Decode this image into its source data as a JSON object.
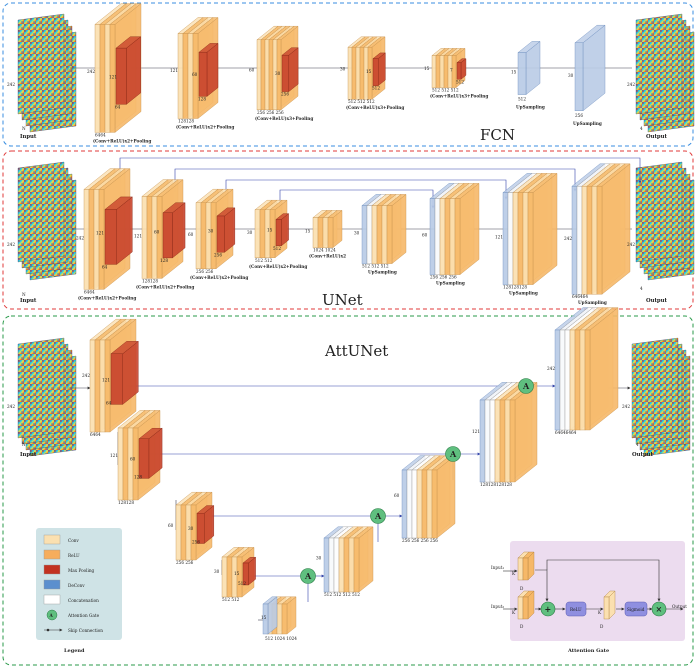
{
  "panels": {
    "fcn": {
      "title": "FCN",
      "color": "#2a2ae0"
    },
    "unet": {
      "title": "UNet",
      "color": "#e02a2a"
    },
    "attunet": {
      "title": "AttUNet",
      "color": "#1a9a3a"
    }
  },
  "io": {
    "input_label": "Input",
    "output_label": "Output",
    "size": "242",
    "batch": "N",
    "channels_out": "4"
  },
  "fcn": {
    "stages": [
      {
        "caption": "(Conv+ReLU)x2+Pooling",
        "size": "242",
        "channels": "6464",
        "inner_size": "121",
        "inner_ch": "64"
      },
      {
        "caption": "(Conv+ReLU)x2+Pooling",
        "size": "121",
        "channels": "128128",
        "inner_size": "60",
        "inner_ch": "128"
      },
      {
        "caption": "(Conv+ReLU)x3+Pooling",
        "size": "60",
        "channels": "256 256 256",
        "inner_size": "30",
        "inner_ch": "256"
      },
      {
        "caption": "(Conv+ReLU)x3+Pooling",
        "size": "30",
        "channels": "512 512 512",
        "inner_size": "15",
        "inner_ch": "512"
      },
      {
        "caption": "(Conv+ReLU)x3+Pooling",
        "size": "15",
        "channels": "512 512 512",
        "inner_size": "7",
        "inner_ch": "512"
      }
    ],
    "upsampling": [
      {
        "caption": "UpSampling",
        "size": "15",
        "channels": "512"
      },
      {
        "caption": "UpSampling",
        "size": "30",
        "channels": "256"
      }
    ]
  },
  "unet": {
    "encoder": [
      {
        "caption": "(Conv+ReLU)x2+Pooling",
        "size": "242",
        "channels": "6464",
        "inner_size": "121",
        "inner_ch": "64"
      },
      {
        "caption": "(Conv+ReLU)x2+Pooling",
        "size": "121",
        "channels": "128128",
        "inner_size": "60",
        "inner_ch": "128"
      },
      {
        "caption": "(Conv+ReLU)x2+Pooling",
        "size": "60",
        "channels": "256 256",
        "inner_size": "30",
        "inner_ch": "256"
      },
      {
        "caption": "(Conv+ReLU)x2+Pooling",
        "size": "30",
        "channels": "512 512",
        "inner_size": "15",
        "inner_ch": "512"
      }
    ],
    "bottleneck": {
      "caption": "(Conv+ReLU)x2",
      "size": "15",
      "channels": "1024 1024"
    },
    "decoder": [
      {
        "caption": "UpSampling",
        "size": "30",
        "channels": "512 512 512"
      },
      {
        "caption": "UpSampling",
        "size": "60",
        "channels": "256 256 256"
      },
      {
        "caption": "UpSampling",
        "size": "121",
        "channels": "128128128"
      },
      {
        "caption": "UpSampling",
        "size": "242",
        "channels": "646464"
      }
    ]
  },
  "attunet": {
    "encoder": [
      {
        "size": "242",
        "channels": "6464",
        "inner_size": "121",
        "inner_ch": "64"
      },
      {
        "size": "121",
        "channels": "128128",
        "inner_size": "60",
        "inner_ch": "128"
      },
      {
        "size": "60",
        "channels": "256 256",
        "inner_size": "30",
        "inner_ch": "256"
      },
      {
        "size": "30",
        "channels": "512 512",
        "inner_size": "15",
        "inner_ch": "512"
      }
    ],
    "bottleneck": {
      "size": "15",
      "channels": "512 1024 1024"
    },
    "decoder": [
      {
        "size": "30",
        "channels": "512 512 512 512"
      },
      {
        "size": "60",
        "channels": "256 256 256 256"
      },
      {
        "size": "121",
        "channels": "128128128128"
      },
      {
        "size": "242",
        "channels": "64646464"
      }
    ],
    "gate_symbol": "A"
  },
  "legend": {
    "title": "Legend",
    "items": [
      {
        "label": "Conv",
        "color": "#fbe0b0"
      },
      {
        "label": "ReLU",
        "color": "#f6ad5c"
      },
      {
        "label": "Max Pooling",
        "color": "#c23220"
      },
      {
        "label": "DeConv",
        "color": "#5b8fce"
      },
      {
        "label": "Concatenation",
        "color": "#ffffff"
      },
      {
        "label": "Attention Gate",
        "color": "#3fae6a"
      },
      {
        "label": "Skip Connection",
        "color": "#444444"
      }
    ]
  },
  "attention_gate": {
    "title": "Attention Gate",
    "input1": "Input₁",
    "input2": "Input₂",
    "output": "Output",
    "relu": "ReLU",
    "sigmoid": "Sigmoid",
    "plus": "+",
    "times": "×",
    "k1": "K",
    "k2": "K",
    "k3": "K",
    "d1": "D",
    "d2": "D",
    "d3": "D"
  }
}
